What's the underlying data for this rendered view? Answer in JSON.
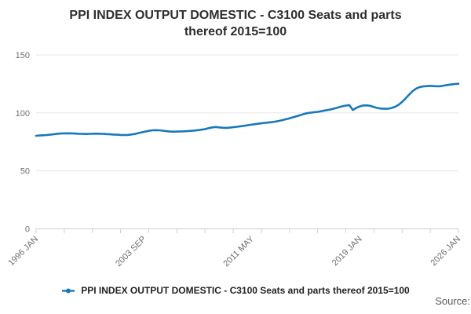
{
  "title": {
    "line1": "PPI INDEX OUTPUT DOMESTIC - C3100 Seats and parts",
    "line2": "thereof 2015=100"
  },
  "legend": {
    "label": "PPI INDEX OUTPUT DOMESTIC - C3100 Seats and parts thereof 2015=100"
  },
  "source_label": "Source:",
  "colors": {
    "line": "#1579bb",
    "grid": "#e7e7e7",
    "axis": "#c5d0de",
    "tick_text": "#6e6e6e",
    "title_text": "#2e2e2e",
    "legend_text": "#222222",
    "source_text": "#5a5a5a"
  },
  "chart_data": {
    "type": "line",
    "title": "PPI INDEX OUTPUT DOMESTIC - C3100 Seats and parts thereof 2015=100",
    "xlabel": "",
    "ylabel": "",
    "ylim": [
      0,
      150
    ],
    "y_ticks": [
      0,
      50,
      100,
      150
    ],
    "grid": "horizontal",
    "legend_position": "bottom",
    "x_range": [
      "1996 JAN",
      "2026 JAN"
    ],
    "x_axis_months_total": 360,
    "minor_tick_every_months": 24,
    "x_tick_labels": [
      "1996 JAN",
      "2003 SEP",
      "2011 MAY",
      "2019 JAN",
      "2026 JAN"
    ],
    "x_tick_label_months": [
      0,
      92,
      184,
      276,
      360
    ],
    "x_unit": "quarter (values run 1996 Q1 to 2026 JAN)",
    "values": [
      80.2,
      80.5,
      80.7,
      80.9,
      81.2,
      81.6,
      82.0,
      82.2,
      82.3,
      82.4,
      82.3,
      82.2,
      82.0,
      81.9,
      81.8,
      81.9,
      82.0,
      82.1,
      82.0,
      81.9,
      81.7,
      81.5,
      81.3,
      81.2,
      81.0,
      80.9,
      81.0,
      81.3,
      81.8,
      82.5,
      83.2,
      83.9,
      84.5,
      85.0,
      85.1,
      85.0,
      84.6,
      84.2,
      83.9,
      83.8,
      83.9,
      84.0,
      84.1,
      84.3,
      84.5,
      84.8,
      85.1,
      85.5,
      86.0,
      86.8,
      87.5,
      87.8,
      87.5,
      87.2,
      87.1,
      87.3,
      87.6,
      88.0,
      88.4,
      88.8,
      89.3,
      89.8,
      90.2,
      90.6,
      91.0,
      91.4,
      91.7,
      92.0,
      92.5,
      93.1,
      93.8,
      94.5,
      95.3,
      96.2,
      97.1,
      98.0,
      99.0,
      99.7,
      100.2,
      100.6,
      100.9,
      101.4,
      102.0,
      102.6,
      103.2,
      104.0,
      104.9,
      105.7,
      106.3,
      106.7,
      102.5,
      104.3,
      105.6,
      106.4,
      106.5,
      106.0,
      105.0,
      104.2,
      103.7,
      103.5,
      103.6,
      104.2,
      105.3,
      107.0,
      109.5,
      112.5,
      115.8,
      118.8,
      121.0,
      122.3,
      122.8,
      123.1,
      123.3,
      123.1,
      122.9,
      123.0,
      123.6,
      124.1,
      124.5,
      124.9,
      125.1
    ]
  }
}
